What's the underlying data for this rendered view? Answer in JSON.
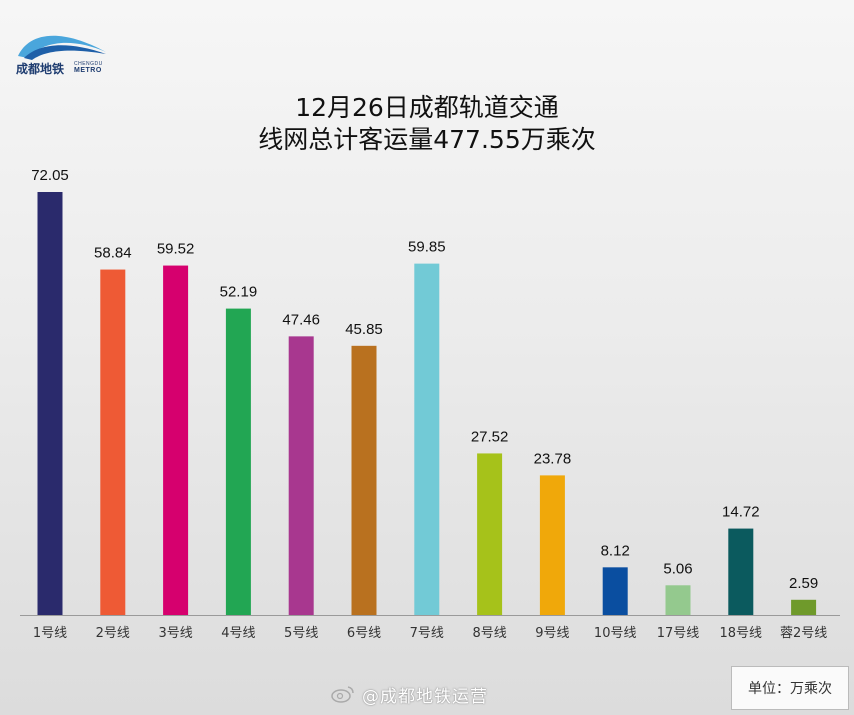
{
  "logo": {
    "cn": "成都地铁",
    "en_top": "CHENGDU",
    "en_bottom": "METRO"
  },
  "title_line1": "12月26日成都轨道交通",
  "title_line2": "线网总计客运量477.55万乘次",
  "unit_label": "单位：万乘次",
  "watermark": "@成都地铁运营",
  "chart_data": {
    "type": "bar",
    "title": "12月26日成都轨道交通 线网总计客运量477.55万乘次",
    "xlabel": "",
    "ylabel": "",
    "unit": "万乘次",
    "ylim": [
      0,
      72.05
    ],
    "grid": false,
    "categories": [
      "1号线",
      "2号线",
      "3号线",
      "4号线",
      "5号线",
      "6号线",
      "7号线",
      "8号线",
      "9号线",
      "10号线",
      "17号线",
      "18号线",
      "蓉2号线"
    ],
    "values": [
      72.05,
      58.84,
      59.52,
      52.19,
      47.46,
      45.85,
      59.85,
      27.52,
      23.78,
      8.12,
      5.06,
      14.72,
      2.59
    ],
    "labels": [
      "72.05",
      "58.84",
      "59.52",
      "52.19",
      "47.46",
      "45.85",
      "59.85",
      "27.52",
      "23.78",
      "8.12",
      "5.06",
      "14.72",
      "2.59"
    ],
    "colors": [
      "#2a2a6c",
      "#ee5a35",
      "#d6006e",
      "#22a653",
      "#a8378f",
      "#b9711f",
      "#72cad6",
      "#a6c21a",
      "#f0a80a",
      "#0a4ea0",
      "#94c98e",
      "#0b5a5e",
      "#6f9a2b"
    ]
  }
}
